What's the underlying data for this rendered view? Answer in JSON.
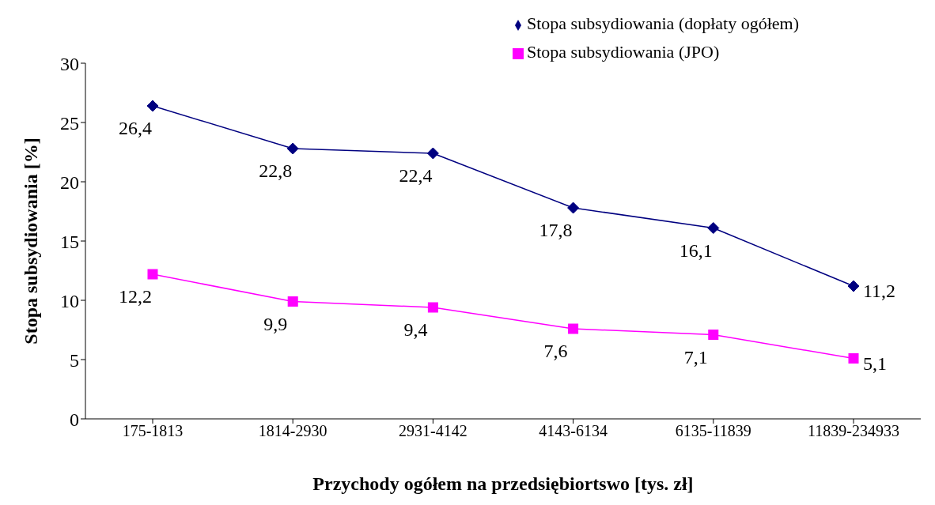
{
  "chart_data": {
    "type": "line",
    "xlabel": "Przychody ogółem na przedsiębiortswo [tys. zł]",
    "ylabel": "Stopa subsydiowania [%]",
    "categories": [
      "175-1813",
      "1814-2930",
      "2931-4142",
      "4143-6134",
      "6135-11839",
      "11839-234933"
    ],
    "series": [
      {
        "name": "Stopa subsydiowania (dopłaty ogółem)",
        "color": "#000080",
        "marker": "diamond",
        "values": [
          26.4,
          22.8,
          22.4,
          17.8,
          16.1,
          11.2
        ],
        "value_labels": [
          "26,4",
          "22,8",
          "22,4",
          "17,8",
          "16,1",
          "11,2"
        ]
      },
      {
        "name": "Stopa subsydiowania (JPO)",
        "color": "#ff00ff",
        "marker": "square",
        "values": [
          12.2,
          9.9,
          9.4,
          7.6,
          7.1,
          5.1
        ],
        "value_labels": [
          "12,2",
          "9,9",
          "9,4",
          "7,6",
          "7,1",
          "5,1"
        ]
      }
    ],
    "ylim": [
      0,
      30
    ],
    "yticks": [
      0,
      5,
      10,
      15,
      20,
      25,
      30
    ],
    "grid": false,
    "legend": "top right",
    "line_style": "solid"
  }
}
